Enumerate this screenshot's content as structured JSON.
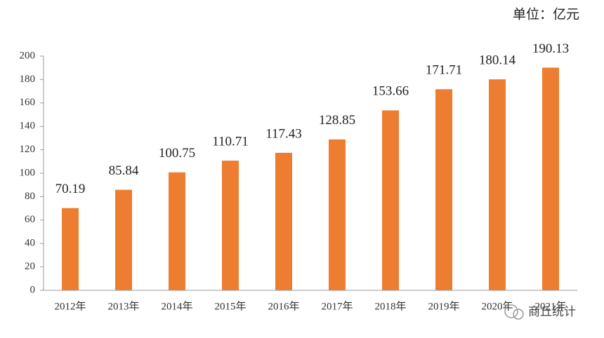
{
  "chart_data": {
    "type": "bar",
    "unit_label": "单位：亿元",
    "categories": [
      "2012年",
      "2013年",
      "2014年",
      "2015年",
      "2016年",
      "2017年",
      "2018年",
      "2019年",
      "2020年",
      "2021年"
    ],
    "values": [
      70.19,
      85.84,
      100.75,
      110.71,
      117.43,
      128.85,
      153.66,
      171.71,
      180.14,
      190.13
    ],
    "color": "#ed7d31",
    "ylim": [
      0,
      200
    ],
    "yticks": [
      0,
      20,
      40,
      60,
      80,
      100,
      120,
      140,
      160,
      180,
      200
    ],
    "grid": false
  },
  "watermark": "商丘统计"
}
